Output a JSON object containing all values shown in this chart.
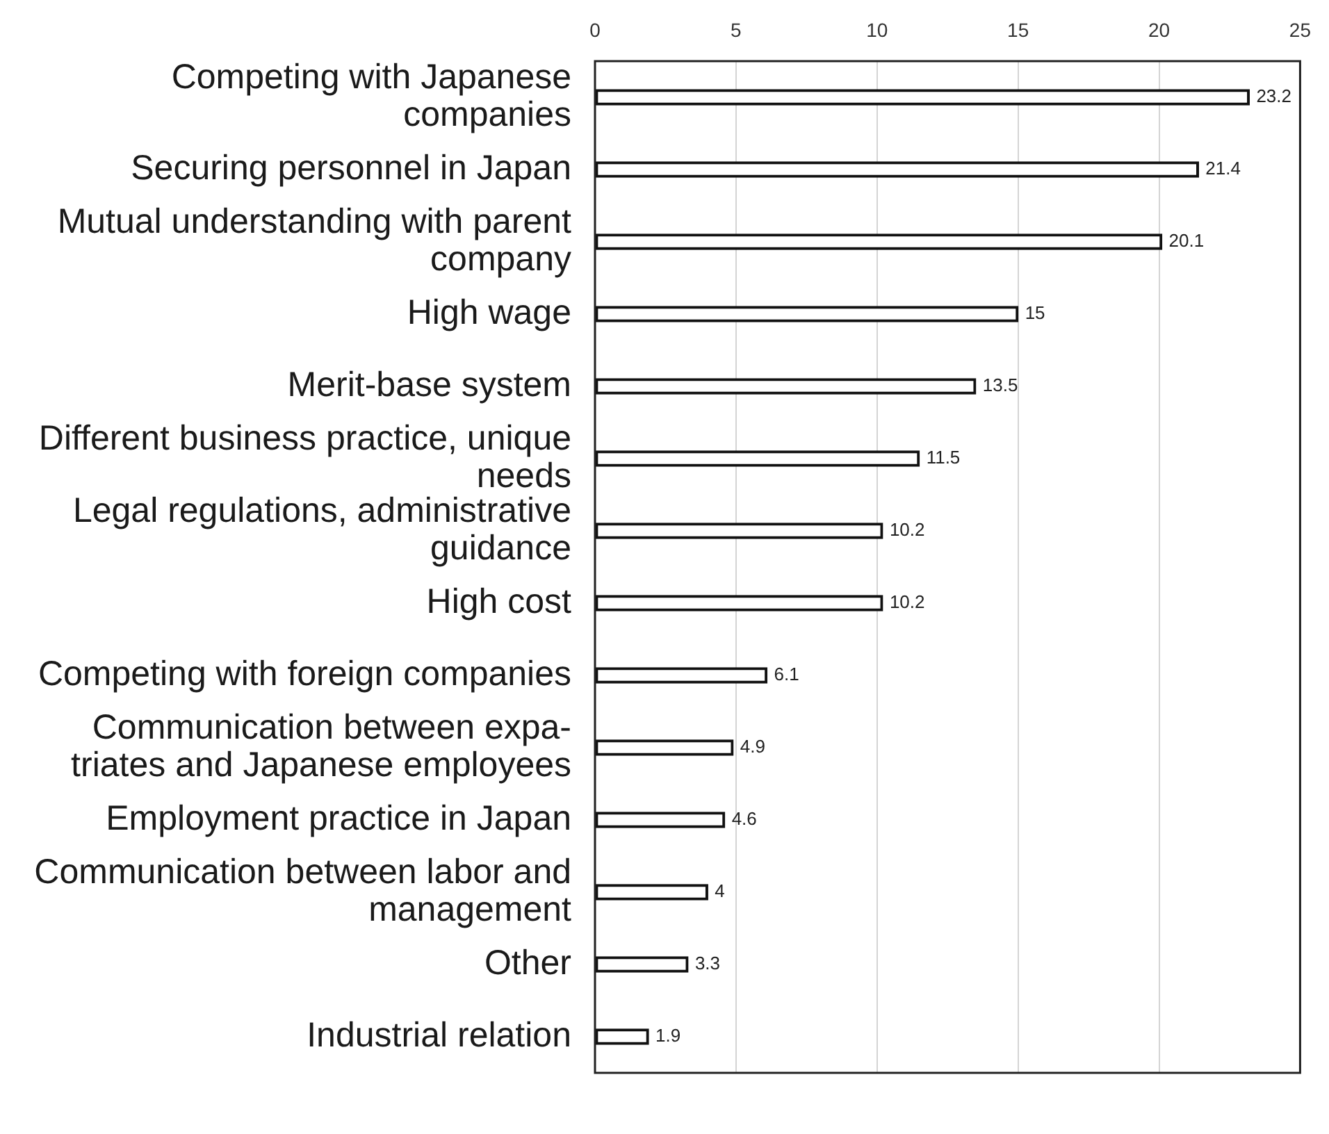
{
  "chart_data": {
    "type": "bar",
    "orientation": "horizontal",
    "categories": [
      "Competing with Japanese companies",
      "Securing personnel in Japan",
      "Mutual understanding with parent company",
      "High wage",
      "Merit-base system",
      "Different business practice, unique needs",
      "Legal regulations, administrative guidance",
      "High cost",
      "Competing with foreign companies",
      "Communication between expa-triates and Japanese employees",
      "Employment practice in Japan",
      "Communication between labor and management",
      "Other",
      "Industrial relation"
    ],
    "values": [
      23.2,
      21.4,
      20.1,
      15,
      13.5,
      11.5,
      10.2,
      10.2,
      6.1,
      4.9,
      4.6,
      4,
      3.3,
      1.9
    ],
    "color": "#ffffff",
    "xlim": [
      0,
      25
    ],
    "xticks": [
      0,
      5,
      10,
      15,
      20,
      25
    ],
    "grid": "x",
    "data_labels": true
  }
}
